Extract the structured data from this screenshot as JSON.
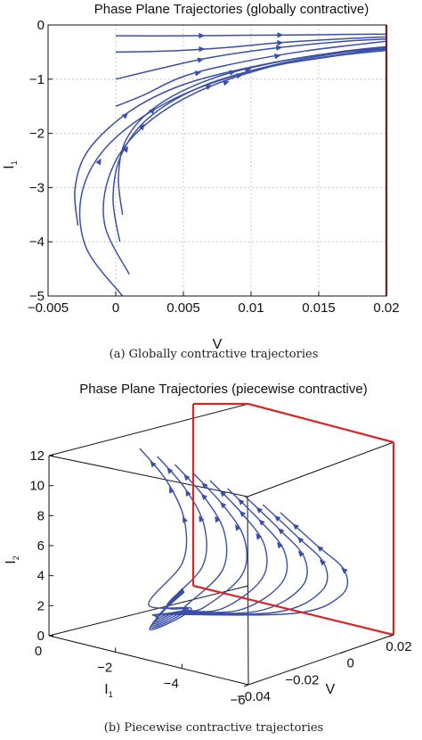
{
  "chart_data": [
    {
      "type": "line",
      "title": "Phase Plane Trajectories (globally contractive)",
      "xlabel": "V",
      "ylabel": "I",
      "ylabel_sub": "1",
      "xlim": [
        -0.005,
        0.02
      ],
      "ylim": [
        -5,
        0
      ],
      "xticks": [
        -0.005,
        0,
        0.005,
        0.01,
        0.015,
        0.02
      ],
      "xtick_labels": [
        "−0.005",
        "0",
        "0.005",
        "0.01",
        "0.015",
        "0.02"
      ],
      "yticks": [
        0,
        -1,
        -2,
        -3,
        -4,
        -5
      ],
      "ytick_labels": [
        "0",
        "−1",
        "−2",
        "−3",
        "−4",
        "−5"
      ],
      "grid": true,
      "caption": "(a)  Globally contractive trajectories",
      "boundary": {
        "x": 0.02,
        "color": "#d62728"
      },
      "line_color": "#3a4fa8",
      "trajectories": [
        [
          [
            0,
            -0.2
          ],
          [
            0.005,
            -0.2
          ],
          [
            0.01,
            -0.19
          ],
          [
            0.015,
            -0.18
          ],
          [
            0.0185,
            -0.17
          ],
          [
            0.02,
            -0.17
          ]
        ],
        [
          [
            0,
            -0.5
          ],
          [
            0.004,
            -0.48
          ],
          [
            0.008,
            -0.42
          ],
          [
            0.012,
            -0.33
          ],
          [
            0.0165,
            -0.26
          ],
          [
            0.02,
            -0.22
          ]
        ],
        [
          [
            0,
            -1.0
          ],
          [
            0.003,
            -0.82
          ],
          [
            0.007,
            -0.6
          ],
          [
            0.012,
            -0.42
          ],
          [
            0.017,
            -0.3
          ],
          [
            0.02,
            -0.26
          ]
        ],
        [
          [
            0,
            -1.5
          ],
          [
            0.002,
            -1.3
          ],
          [
            0.005,
            -0.95
          ],
          [
            0.009,
            -0.7
          ],
          [
            0.014,
            -0.48
          ],
          [
            0.02,
            -0.3
          ]
        ],
        [
          [
            0.0005,
            -3.5
          ],
          [
            0.0002,
            -2.8
          ],
          [
            0.0008,
            -2.1
          ],
          [
            0.003,
            -1.5
          ],
          [
            0.007,
            -1.0
          ],
          [
            0.012,
            -0.68
          ],
          [
            0.017,
            -0.48
          ],
          [
            0.02,
            -0.4
          ]
        ],
        [
          [
            0.0003,
            -4.0
          ],
          [
            -0.0002,
            -3.2
          ],
          [
            0.0004,
            -2.4
          ],
          [
            0.0025,
            -1.7
          ],
          [
            0.0065,
            -1.12
          ],
          [
            0.012,
            -0.72
          ],
          [
            0.017,
            -0.5
          ],
          [
            0.02,
            -0.42
          ]
        ],
        [
          [
            0.001,
            -4.6
          ],
          [
            -0.0008,
            -3.7
          ],
          [
            -0.0005,
            -2.8
          ],
          [
            0.0015,
            -2.0
          ],
          [
            0.0055,
            -1.3
          ],
          [
            0.011,
            -0.8
          ],
          [
            0.0165,
            -0.55
          ],
          [
            0.02,
            -0.44
          ]
        ],
        [
          [
            0.0005,
            -5.0
          ],
          [
            -0.0022,
            -4.1
          ],
          [
            -0.0025,
            -3.1
          ],
          [
            -0.0005,
            -2.2
          ],
          [
            0.004,
            -1.4
          ],
          [
            0.01,
            -0.85
          ],
          [
            0.016,
            -0.58
          ],
          [
            0.02,
            -0.47
          ]
        ],
        [
          [
            -0.0028,
            -3.7
          ],
          [
            -0.003,
            -3.0
          ],
          [
            -0.002,
            -2.3
          ],
          [
            0.001,
            -1.6
          ],
          [
            0.005,
            -1.1
          ],
          [
            0.0105,
            -0.75
          ],
          [
            0.016,
            -0.52
          ],
          [
            0.02,
            -0.45
          ]
        ]
      ]
    },
    {
      "type": "line",
      "title": "Phase Plane Trajectories (piecewise contractive)",
      "xlabel": "I",
      "xlabel_sub": "1",
      "ylabel": "V",
      "zlabel": "I",
      "zlabel_sub": "2",
      "I1_ticks": [
        0,
        -2,
        -4,
        -6
      ],
      "I1_tick_labels": [
        "0",
        "−2",
        "−4",
        "−6"
      ],
      "V_ticks": [
        -0.04,
        -0.02,
        0,
        0.02
      ],
      "V_tick_labels": [
        "−0.04",
        "−0.02",
        "0",
        "0.02"
      ],
      "I2_ticks": [
        0,
        2,
        4,
        6,
        8,
        10,
        12
      ],
      "I2_tick_labels": [
        "0",
        "2",
        "4",
        "6",
        "8",
        "10",
        "12"
      ],
      "caption": "(b)  Piecewise contractive trajectories",
      "boundary_color": "#d62728",
      "line_color": "#3a4fa8",
      "trajectory_count": 9
    }
  ]
}
